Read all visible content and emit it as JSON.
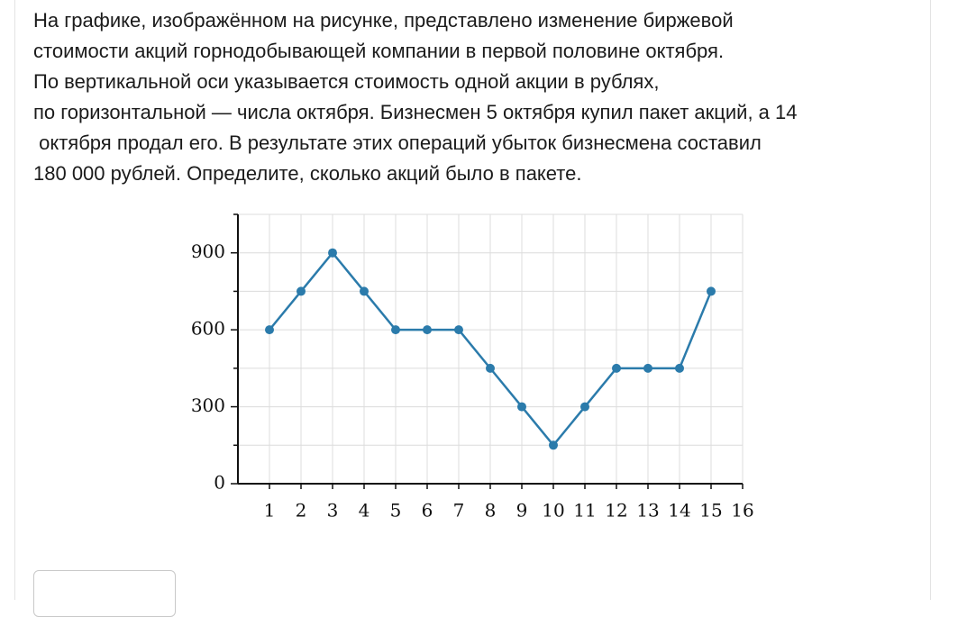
{
  "problem": {
    "lines": [
      "На графике, изображённом на рисунке, представлено изменение биржевой",
      "стоимости акций горнодобывающей компании в первой половине октября.",
      "По вертикальной оси указывается стоимость одной акции в рублях,",
      "по горизонтальной — числа октября. Бизнесмен 5 октября купил пакет акций, а 14",
      " октября продал его. В результате этих операций убыток бизнесмена составил",
      "180 000 рублей. Определите, сколько акций было в пакете."
    ]
  },
  "chart_data": {
    "type": "line",
    "x": [
      1,
      2,
      3,
      4,
      5,
      6,
      7,
      8,
      9,
      10,
      11,
      12,
      13,
      14,
      15
    ],
    "values": [
      600,
      750,
      900,
      750,
      600,
      600,
      600,
      450,
      300,
      150,
      300,
      450,
      450,
      450,
      750
    ],
    "color": "#2b7bab",
    "xlim": [
      0,
      16
    ],
    "xticks": [
      1,
      2,
      3,
      4,
      5,
      6,
      7,
      8,
      9,
      10,
      11,
      12,
      13,
      14,
      15,
      16
    ],
    "ylim": [
      0,
      1050
    ],
    "yticks": [
      0,
      300,
      600,
      900
    ],
    "minor_yticks": [
      150,
      450,
      750,
      1050
    ],
    "grid": true
  }
}
